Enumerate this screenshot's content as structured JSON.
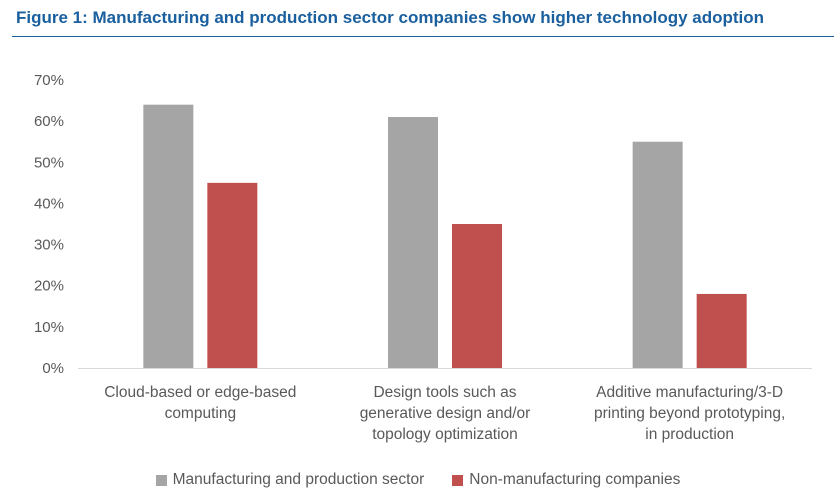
{
  "figure": {
    "title": "Figure 1: Manufacturing and production sector companies show higher technology adoption"
  },
  "colors": {
    "title": "#1a5f9e",
    "series_manufacturing": "#a5a5a5",
    "series_non_manufacturing": "#c0504d",
    "axis_text": "#595959",
    "baseline": "#d9d9d9"
  },
  "chart_data": {
    "type": "bar",
    "title": "Figure 1: Manufacturing and production sector companies show higher technology adoption",
    "xlabel": "",
    "ylabel": "",
    "ylim": [
      0,
      70
    ],
    "yticks": [
      "0%",
      "10%",
      "20%",
      "30%",
      "40%",
      "50%",
      "60%",
      "70%"
    ],
    "grid": false,
    "legend_position": "bottom",
    "categories": [
      "Cloud-based or edge-based computing",
      "Design tools such as generative design and/or topology optimization",
      "Additive manufacturing/3-D printing beyond prototyping, in production"
    ],
    "category_label_lines": [
      [
        "Cloud-based or edge-based",
        "computing"
      ],
      [
        "Design tools such as",
        "generative design and/or",
        "topology optimization"
      ],
      [
        "Additive manufacturing/3-D",
        "printing beyond prototyping,",
        "in production"
      ]
    ],
    "series": [
      {
        "name": "Manufacturing and production sector",
        "values": [
          64,
          61,
          55
        ]
      },
      {
        "name": "Non-manufacturing companies",
        "values": [
          45,
          35,
          18
        ]
      }
    ]
  }
}
